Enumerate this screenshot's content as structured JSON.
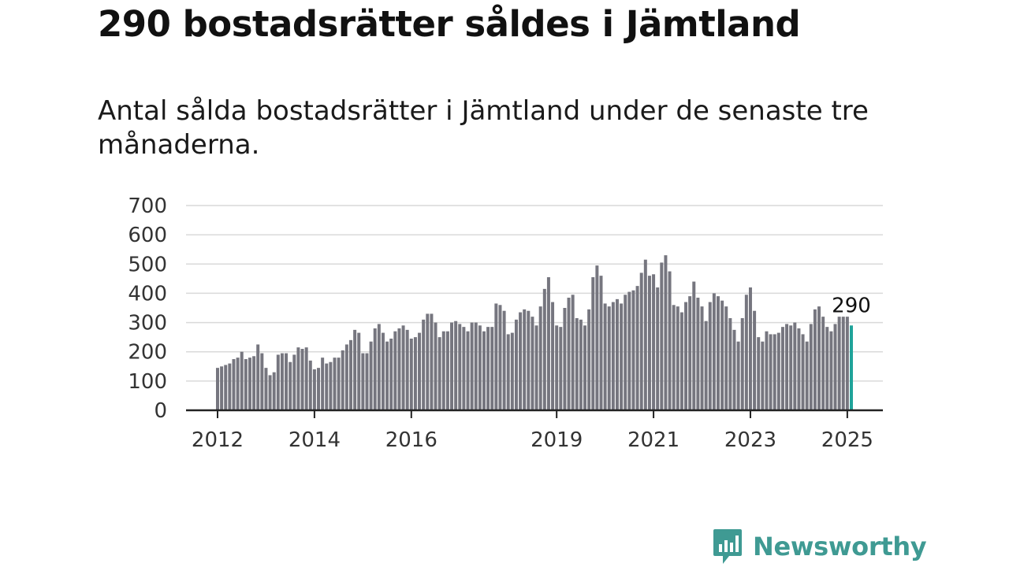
{
  "title": "290 bostadsrätter såldes i Jämtland",
  "subtitle": "Antal sålda bostadsrätter i Jämtland under de senaste tre månaderna.",
  "logo": {
    "text": "Newsworthy",
    "icon": "bar-chart-bubble-icon",
    "color": "#3f9a93"
  },
  "chart_data": {
    "type": "bar",
    "title": "",
    "xlabel": "",
    "ylabel": "",
    "ylim": [
      0,
      700
    ],
    "y_ticks": [
      0,
      100,
      200,
      300,
      400,
      500,
      600,
      700
    ],
    "x_tick_labels": [
      "2012",
      "2014",
      "2016",
      "2019",
      "2021",
      "2023",
      "2025"
    ],
    "grid": true,
    "bar_color": "#76767f",
    "highlight_color": "#1fa39a",
    "highlight_last": true,
    "last_value_label": "290",
    "series": [
      {
        "values": [
          145,
          150,
          155,
          160,
          175,
          180,
          200,
          175,
          180,
          185,
          225,
          195,
          145,
          120,
          130,
          190,
          195,
          195,
          165,
          190,
          215,
          210,
          215,
          170,
          140,
          145,
          180,
          160,
          165,
          180,
          180,
          205,
          225,
          240,
          275,
          265,
          195,
          195,
          235,
          280,
          295,
          265,
          235,
          245,
          270,
          280,
          290,
          275,
          245,
          250,
          265,
          310,
          330,
          330,
          300,
          250,
          270,
          270,
          300,
          305,
          295,
          285,
          270,
          300,
          300,
          290,
          270,
          285,
          285,
          365,
          360,
          340,
          260,
          265,
          310,
          335,
          345,
          340,
          320,
          290,
          355,
          415,
          455,
          370,
          290,
          285,
          350,
          385,
          395,
          315,
          310,
          290,
          345,
          455,
          495,
          460,
          365,
          355,
          370,
          380,
          365,
          395,
          405,
          410,
          425,
          470,
          515,
          460,
          465,
          420,
          505,
          530,
          475,
          360,
          355,
          335,
          370,
          390,
          440,
          385,
          355,
          305,
          370,
          400,
          390,
          375,
          355,
          315,
          275,
          235,
          315,
          395,
          420,
          340,
          250,
          235,
          270,
          260,
          260,
          265,
          285,
          295,
          290,
          300,
          280,
          260,
          235,
          295,
          345,
          355,
          320,
          285,
          270,
          295,
          320,
          320,
          320,
          290
        ]
      }
    ]
  }
}
